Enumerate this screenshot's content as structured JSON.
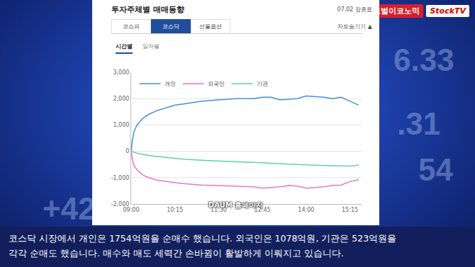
{
  "chart_data": {
    "type": "line",
    "title": "투자주체별 매매동향",
    "x": [
      540,
      542,
      545,
      550,
      560,
      570,
      585,
      600,
      615,
      630,
      660,
      690,
      720,
      750,
      765,
      780,
      795,
      810,
      825,
      840,
      855,
      870,
      885,
      900,
      915,
      925,
      930
    ],
    "series": [
      {
        "name": "개인",
        "color": "#4a8fdc",
        "values": [
          0,
          400,
          750,
          1000,
          1250,
          1400,
          1550,
          1650,
          1750,
          1800,
          1900,
          1950,
          2000,
          2000,
          2050,
          2050,
          1950,
          1980,
          2000,
          2100,
          2080,
          2050,
          2000,
          2050,
          1900,
          1800,
          1754
        ]
      },
      {
        "name": "외국인",
        "color": "#e878c0",
        "values": [
          0,
          -300,
          -550,
          -700,
          -900,
          -1000,
          -1100,
          -1150,
          -1200,
          -1230,
          -1280,
          -1300,
          -1330,
          -1350,
          -1400,
          -1380,
          -1350,
          -1300,
          -1320,
          -1400,
          -1380,
          -1350,
          -1300,
          -1280,
          -1150,
          -1100,
          -1078
        ]
      },
      {
        "name": "기관",
        "color": "#5ed1b0",
        "values": [
          0,
          -20,
          -40,
          -70,
          -120,
          -160,
          -200,
          -240,
          -280,
          -300,
          -340,
          -380,
          -400,
          -420,
          -440,
          -450,
          -470,
          -490,
          -500,
          -520,
          -530,
          -540,
          -550,
          -560,
          -560,
          -540,
          -523
        ]
      }
    ],
    "xlim": [
      540,
      935
    ],
    "xticks": [
      {
        "value": 540,
        "label": "09:00"
      },
      {
        "value": 615,
        "label": "10:15"
      },
      {
        "value": 690,
        "label": "11:30"
      },
      {
        "value": 765,
        "label": "12:45"
      },
      {
        "value": 840,
        "label": "14:00"
      },
      {
        "value": 915,
        "label": "15:15"
      }
    ],
    "ylim": [
      -2000,
      3000
    ],
    "yticks": [
      {
        "value": -2000,
        "label": "-2,000"
      },
      {
        "value": -1000,
        "label": "-1,000"
      },
      0,
      {
        "value": 1000,
        "label": "1,000"
      },
      {
        "value": 2000,
        "label": "2,000"
      },
      {
        "value": 3000,
        "label": "3,000"
      }
    ],
    "grid": true,
    "legend": "top left"
  },
  "screen": {
    "logo": [
      "글로벌이코노믹",
      "StockTV"
    ],
    "date": "07.02 장종료",
    "tabs": [
      {
        "label": "코스피"
      },
      {
        "label": "코스닥",
        "active": true
      },
      {
        "label": "선물옵션"
      }
    ],
    "toggle": "차트숨기기 ▲",
    "subtabs": [
      {
        "label": "시간별",
        "active": true
      },
      {
        "label": "일자별"
      }
    ],
    "watermark": "DAUM 홈페이지",
    "background_texts": [
      "6.33",
      ".31",
      "54",
      "+42"
    ],
    "caption": [
      "코스닥 시장에서 개인은 1754억원을 순매수 했습니다. 외국인은 1078억원, 기관은 523억원을",
      "각각 순매도 했습니다. 매수와 매도 세력간 손바뀜이 활발하게 이뤄지고 있습니다."
    ]
  }
}
